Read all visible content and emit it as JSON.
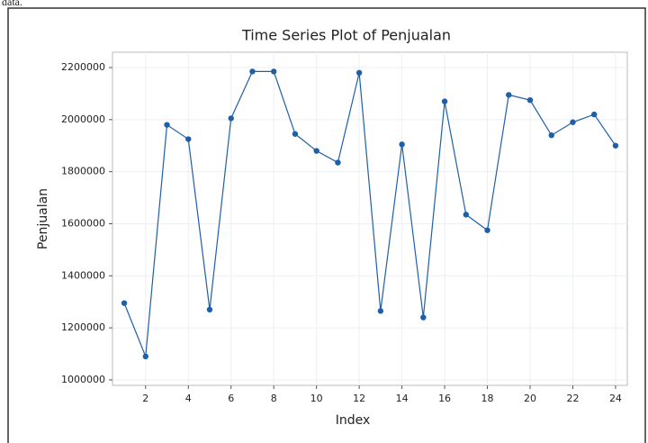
{
  "caption": "data.",
  "chart_data": {
    "type": "line",
    "title": "Time Series Plot of Penjualan",
    "xlabel": "Index",
    "ylabel": "Penjualan",
    "x": [
      1,
      2,
      3,
      4,
      5,
      6,
      7,
      8,
      9,
      10,
      11,
      12,
      13,
      14,
      15,
      16,
      17,
      18,
      19,
      20,
      21,
      22,
      23,
      24
    ],
    "series": [
      {
        "name": "Penjualan",
        "color": "#1f5fa8",
        "values": [
          1295000,
          1090000,
          1980000,
          1925000,
          1270000,
          2005000,
          2185000,
          2185000,
          1945000,
          1880000,
          1835000,
          2180000,
          1265000,
          1905000,
          1240000,
          2070000,
          1635000,
          1575000,
          2095000,
          2075000,
          1940000,
          1990000,
          2020000,
          1900000
        ]
      }
    ],
    "xlim": [
      0.45,
      24.55
    ],
    "xticks": [
      2,
      4,
      6,
      8,
      10,
      12,
      14,
      16,
      18,
      20,
      22,
      24
    ],
    "ylim": [
      979000,
      2259000
    ],
    "yticks": [
      1000000,
      1200000,
      1400000,
      1600000,
      1800000,
      2000000,
      2200000
    ],
    "grid": true
  }
}
